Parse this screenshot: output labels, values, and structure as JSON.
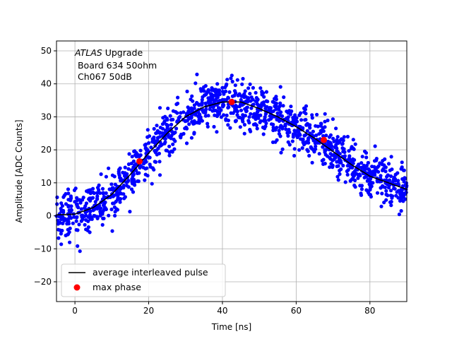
{
  "chart_data": {
    "type": "scatter",
    "title": "",
    "xlabel": "Time [ns]",
    "ylabel": "Amplitude [ADC Counts]",
    "xlim": [
      -5,
      90
    ],
    "ylim": [
      -26,
      53
    ],
    "xticks": [
      0,
      20,
      40,
      60,
      80
    ],
    "yticks": [
      -20,
      -10,
      0,
      10,
      20,
      30,
      40,
      50
    ],
    "grid": true,
    "annotation": {
      "line1_italic": "ATLAS",
      "line1_rest": " Upgrade",
      "line2": " Board 634 50ohm",
      "line3": " Ch067 50dB"
    },
    "legend": {
      "placement": "lower-left",
      "entries": [
        "average interleaved pulse",
        "max phase"
      ]
    },
    "series": [
      {
        "name": "average interleaved pulse",
        "kind": "line",
        "color": "#000000",
        "x": [
          -5,
          0,
          5,
          10,
          15,
          20,
          25,
          30,
          35,
          40,
          45,
          50,
          55,
          60,
          65,
          70,
          75,
          80,
          85,
          90
        ],
        "y": [
          0.3,
          0.5,
          2.5,
          6.5,
          12.5,
          19,
          25,
          30,
          33,
          34.5,
          34.5,
          32.5,
          30,
          27,
          23.5,
          19.5,
          15.5,
          12,
          10,
          8
        ]
      },
      {
        "name": "max phase",
        "kind": "marker",
        "color": "#ff0000",
        "x": [
          17.5,
          42.5,
          67.5
        ],
        "y": [
          16.5,
          34.5,
          23
        ]
      }
    ],
    "scatter_description": {
      "name": "samples",
      "color": "#0000ff",
      "note": "dense blue sample points scattered around the average pulse"
    }
  },
  "colors": {
    "samples": "#0000ff",
    "average": "#000000",
    "max_phase": "#ff0000",
    "grid": "#b0b0b0"
  }
}
